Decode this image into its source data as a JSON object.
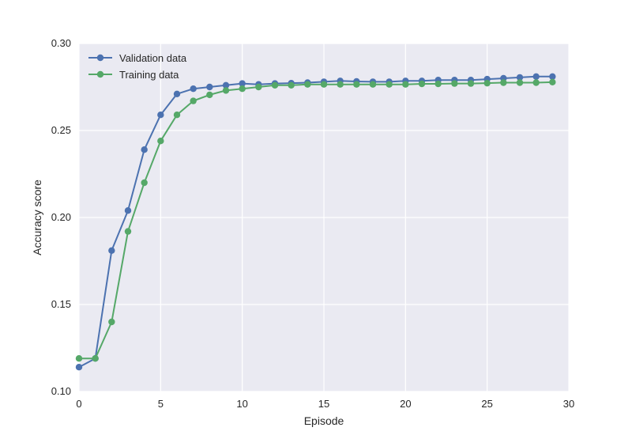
{
  "chart_data": {
    "type": "line",
    "title": "",
    "xlabel": "Episode",
    "ylabel": "Accuracy score",
    "xlim": [
      0,
      30
    ],
    "ylim": [
      0.1,
      0.3
    ],
    "xticks": [
      0,
      5,
      10,
      15,
      20,
      25,
      30
    ],
    "yticks": [
      0.1,
      0.15,
      0.2,
      0.25,
      0.3
    ],
    "xtick_labels": [
      "0",
      "5",
      "10",
      "15",
      "20",
      "25",
      "30"
    ],
    "ytick_labels": [
      "0.10",
      "0.15",
      "0.20",
      "0.25",
      "0.30"
    ],
    "grid": true,
    "legend_position": "top-left",
    "background_color": "#EAEAF2",
    "x": [
      0,
      1,
      2,
      3,
      4,
      5,
      6,
      7,
      8,
      9,
      10,
      11,
      12,
      13,
      14,
      15,
      16,
      17,
      18,
      19,
      20,
      21,
      22,
      23,
      24,
      25,
      26,
      27,
      28,
      29
    ],
    "series": [
      {
        "name": "Validation data",
        "color": "#4C72B0",
        "marker": "circle",
        "values": [
          0.114,
          0.119,
          0.181,
          0.204,
          0.239,
          0.259,
          0.271,
          0.274,
          0.275,
          0.276,
          0.277,
          0.2765,
          0.277,
          0.2772,
          0.2775,
          0.278,
          0.2785,
          0.2782,
          0.278,
          0.278,
          0.2785,
          0.2785,
          0.279,
          0.279,
          0.279,
          0.2795,
          0.28,
          0.2805,
          0.281,
          0.281
        ]
      },
      {
        "name": "Training data",
        "color": "#55A868",
        "marker": "circle",
        "values": [
          0.119,
          0.119,
          0.14,
          0.192,
          0.22,
          0.244,
          0.259,
          0.267,
          0.2705,
          0.273,
          0.274,
          0.275,
          0.276,
          0.276,
          0.2765,
          0.2765,
          0.2765,
          0.2765,
          0.2765,
          0.2765,
          0.2765,
          0.2768,
          0.2768,
          0.277,
          0.277,
          0.2772,
          0.2775,
          0.2775,
          0.2775,
          0.2778
        ]
      }
    ]
  }
}
